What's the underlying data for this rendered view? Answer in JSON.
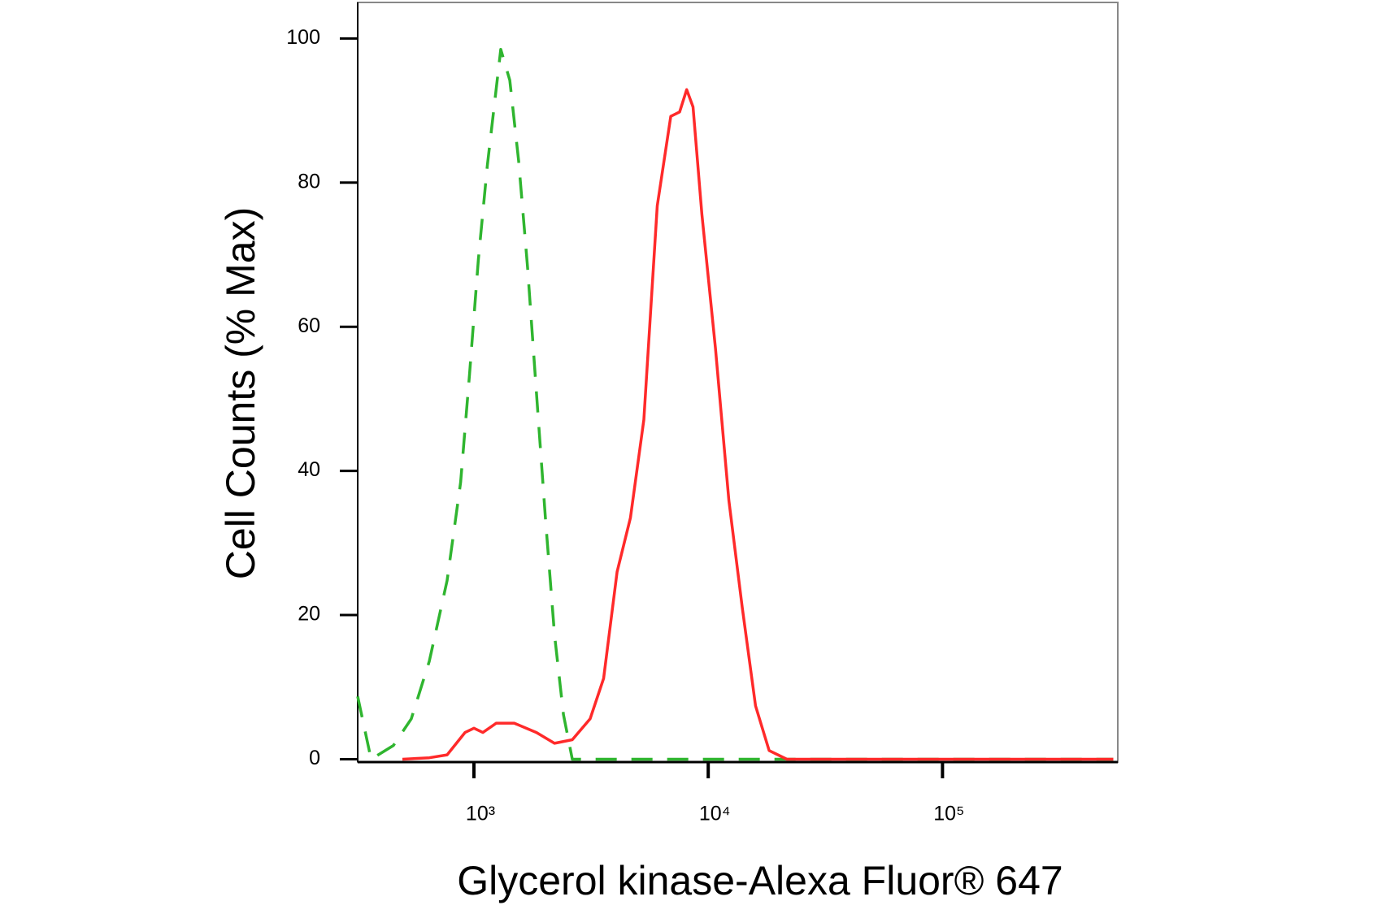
{
  "chart_data": {
    "type": "line",
    "xlabel": "Glycerol kinase-Alexa Fluor® 647",
    "ylabel": "Cell Counts (% Max)",
    "xscale": "log",
    "xlim": [
      319,
      560000
    ],
    "ylim": [
      -0.4,
      105
    ],
    "xticks": [
      {
        "value": 1000,
        "label": "10³"
      },
      {
        "value": 10000,
        "label": "10⁴"
      },
      {
        "value": 100000,
        "label": "10⁵"
      }
    ],
    "yticks": [
      0,
      20,
      40,
      60,
      80,
      100
    ],
    "series": [
      {
        "color": "#2fb52f",
        "linestyle": "dashed",
        "x": [
          319,
          364,
          453,
          540,
          645,
          768,
          877,
          957,
          1045,
          1141,
          1302,
          1422,
          1552,
          1694,
          1849,
          2018,
          2207,
          2410,
          2630,
          4457,
          536000
        ],
        "values": [
          8.7,
          0,
          1.9,
          5.6,
          13.6,
          24.8,
          38.4,
          53.3,
          69.4,
          82.4,
          98.5,
          94.2,
          83.0,
          68.2,
          50.8,
          33.5,
          17.3,
          6.2,
          0,
          0,
          0
        ]
      },
      {
        "color": "#ff2a2a",
        "linestyle": "solid",
        "x": [
          495,
          645,
          768,
          916,
          1000,
          1092,
          1246,
          1485,
          1849,
          2207,
          2630,
          3133,
          3575,
          4083,
          4656,
          5310,
          6058,
          6918,
          7551,
          8091,
          8610,
          9397,
          10740,
          12250,
          13970,
          15920,
          18200,
          21680,
          536000
        ],
        "values": [
          0,
          0.2,
          0.6,
          3.7,
          4.3,
          3.7,
          5.0,
          5.0,
          3.7,
          2.2,
          2.7,
          5.6,
          11.2,
          26.0,
          33.5,
          47.1,
          76.8,
          89.2,
          89.8,
          92.9,
          90.5,
          75.6,
          57.0,
          35.9,
          21.1,
          7.4,
          1.2,
          0,
          0
        ]
      }
    ]
  }
}
